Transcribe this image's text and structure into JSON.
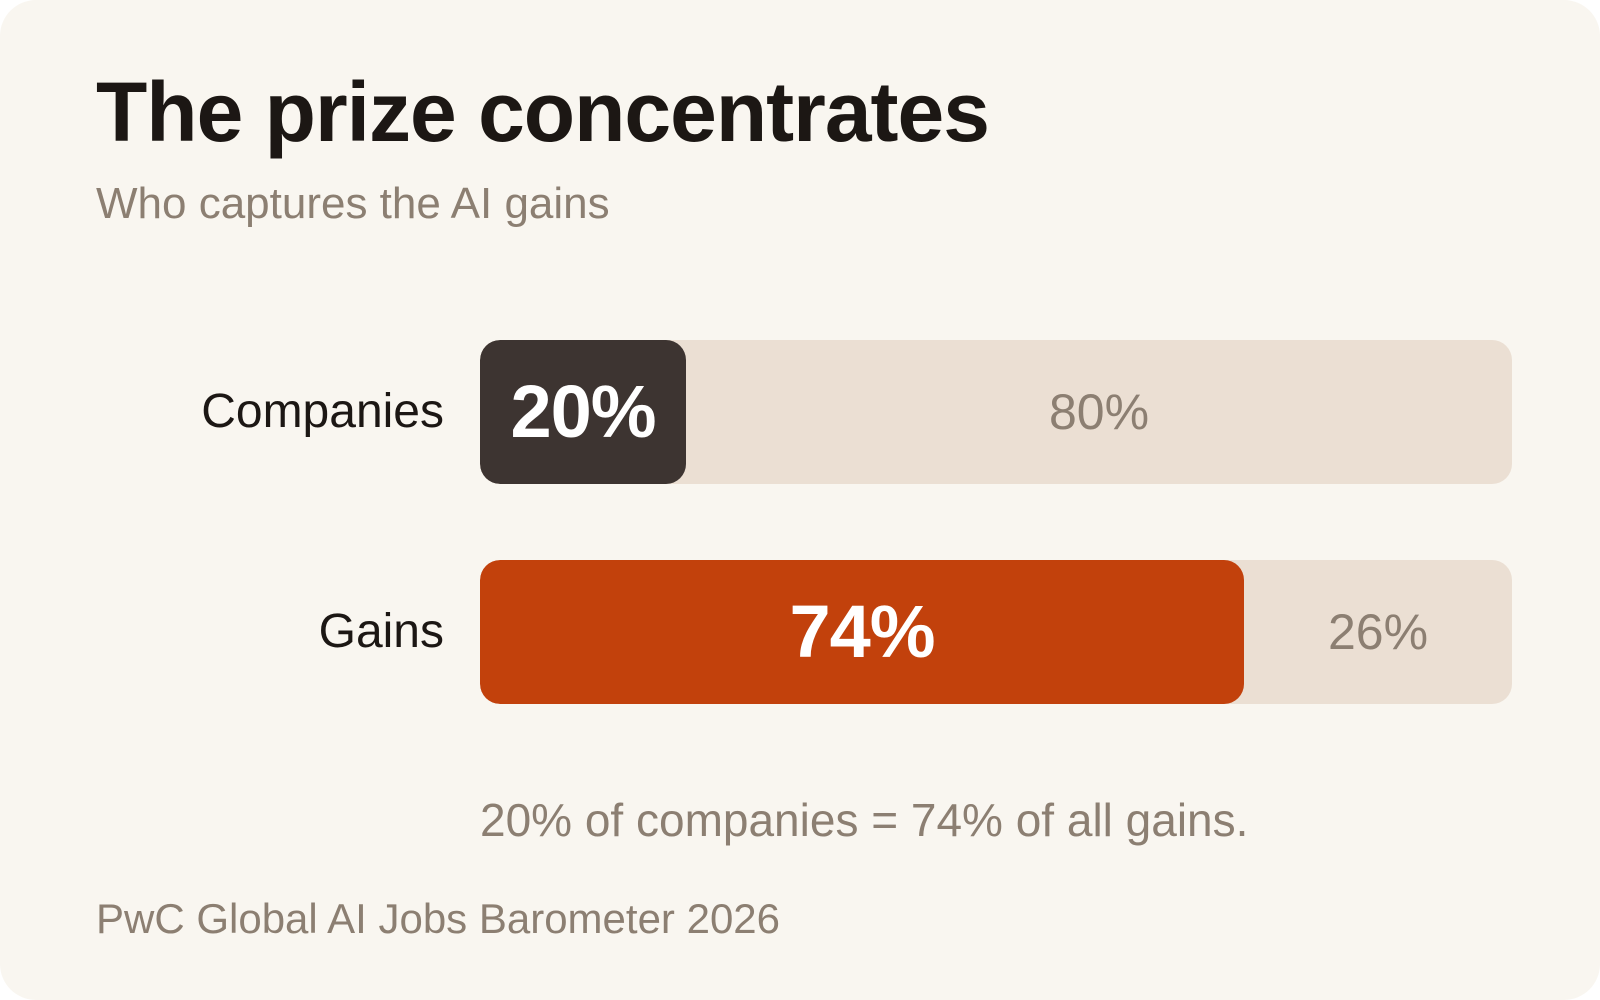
{
  "title": "The prize concentrates",
  "subtitle": "Who captures the AI gains",
  "chart_data": {
    "type": "bar",
    "orientation": "horizontal",
    "stacked": true,
    "categories": [
      "Companies",
      "Gains"
    ],
    "series": [
      {
        "values": [
          20,
          74
        ],
        "labels": [
          "20%",
          "74%"
        ],
        "colors": [
          "#3d3431",
          "#c2410c"
        ]
      },
      {
        "values": [
          80,
          26
        ],
        "labels": [
          "80%",
          "26%"
        ],
        "color": "#ebdfd3"
      }
    ],
    "xlim": [
      0,
      100
    ],
    "grid": false
  },
  "caption": "20% of companies = 74% of all gains.",
  "source": "PwC Global AI Jobs Barometer 2026"
}
